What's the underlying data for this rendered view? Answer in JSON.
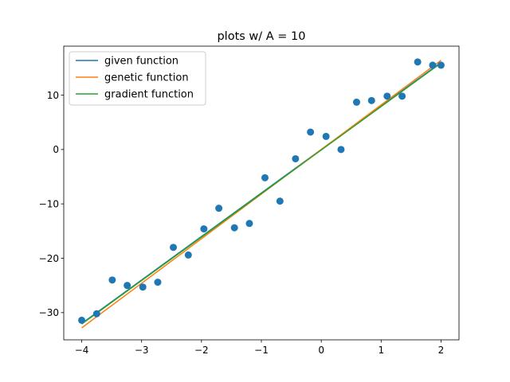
{
  "chart_data": {
    "type": "scatter",
    "title": "plots w/ A = 10",
    "xlabel": "",
    "ylabel": "",
    "xlim": [
      -4.3,
      2.3
    ],
    "ylim": [
      -35,
      19
    ],
    "xticks": [
      -4,
      -3,
      -2,
      -1,
      0,
      1,
      2
    ],
    "xtick_labels": [
      "−4",
      "−3",
      "−2",
      "−1",
      "0",
      "1",
      "2"
    ],
    "yticks": [
      -30,
      -20,
      -10,
      0,
      10
    ],
    "ytick_labels": [
      "−30",
      "−20",
      "−10",
      "0",
      "10"
    ],
    "grid": false,
    "legend_position": "top-left",
    "scatter": {
      "color": "#1f77b4",
      "x": [
        -4.0,
        -3.75,
        -3.49,
        -3.24,
        -2.98,
        -2.73,
        -2.47,
        -2.22,
        -1.96,
        -1.71,
        -1.45,
        -1.2,
        -0.94,
        -0.69,
        -0.43,
        -0.18,
        0.08,
        0.33,
        0.59,
        0.84,
        1.1,
        1.35,
        1.61,
        1.86,
        2.0
      ],
      "y": [
        -31.4,
        -30.2,
        -24.0,
        -25.0,
        -25.3,
        -24.4,
        -18.0,
        -19.4,
        -14.6,
        -10.8,
        -14.4,
        -13.6,
        -5.2,
        -9.5,
        -1.7,
        3.2,
        2.4,
        0.0,
        8.7,
        9.0,
        9.8,
        9.8,
        16.1,
        15.5,
        15.5
      ]
    },
    "series": [
      {
        "name": "given function",
        "color": "#1f77b4",
        "x": [
          -4.0,
          2.0
        ],
        "y": [
          -32.0,
          16.0
        ]
      },
      {
        "name": "genetic function",
        "color": "#ff7f0e",
        "x": [
          -4.0,
          2.0
        ],
        "y": [
          -32.8,
          16.4
        ]
      },
      {
        "name": "gradient function",
        "color": "#2ca02c",
        "x": [
          -4.0,
          2.0
        ],
        "y": [
          -32.1,
          15.9
        ]
      }
    ]
  }
}
